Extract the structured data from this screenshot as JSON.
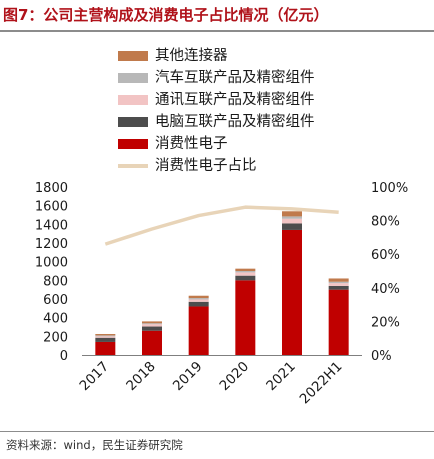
{
  "title": "图7：公司主营构成及消费电子占比情况（亿元）",
  "source": "资料来源：wind，民生证券研究院",
  "chart_data": {
    "type": "bar",
    "stacked": true,
    "categories": [
      "2017",
      "2018",
      "2019",
      "2020",
      "2021",
      "2022H1"
    ],
    "series": [
      {
        "name": "消费性电子",
        "color": "#c00000",
        "values": [
          140,
          260,
          520,
          800,
          1340,
          700
        ]
      },
      {
        "name": "电脑互联产品及精密组件",
        "color": "#4d4d4d",
        "values": [
          45,
          45,
          50,
          50,
          70,
          40
        ]
      },
      {
        "name": "通讯互联产品及精密组件",
        "color": "#f2c4c4",
        "values": [
          15,
          25,
          25,
          35,
          50,
          30
        ]
      },
      {
        "name": "汽车互联产品及精密组件",
        "color": "#b8b8b8",
        "values": [
          10,
          10,
          15,
          15,
          25,
          15
        ]
      },
      {
        "name": "其他连接器",
        "color": "#c07a4c",
        "values": [
          15,
          20,
          25,
          25,
          55,
          35
        ]
      }
    ],
    "line_series": {
      "name": "消费性电子占比",
      "color": "#e8d4b8",
      "values": [
        0.66,
        0.75,
        0.83,
        0.88,
        0.87,
        0.85
      ]
    },
    "y_left": {
      "min": 0,
      "max": 1800,
      "ticks": [
        0,
        200,
        400,
        600,
        800,
        1000,
        1200,
        1400,
        1600,
        1800
      ]
    },
    "y_right": {
      "min": 0,
      "max": 1,
      "ticks": [
        "0%",
        "20%",
        "40%",
        "60%",
        "80%",
        "100%"
      ]
    },
    "legend_order": [
      4,
      3,
      2,
      1,
      0,
      "line"
    ],
    "legend_position": "top"
  }
}
